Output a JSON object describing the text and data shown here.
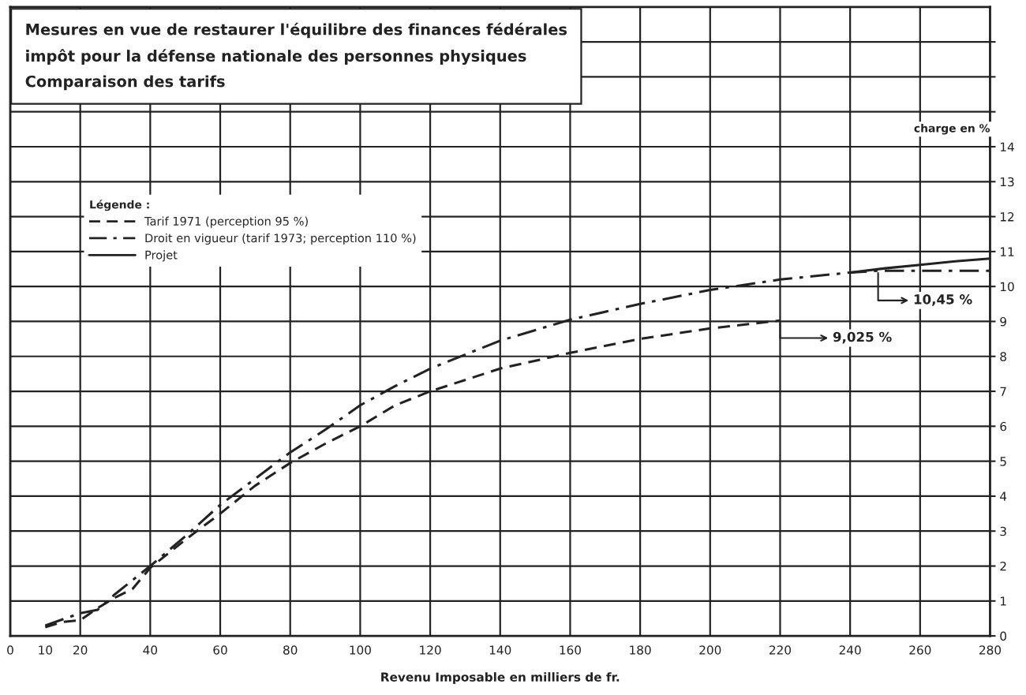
{
  "chart_data": {
    "type": "line",
    "title": "Mesures en vue de restaurer l'équilibre des finances fédérales",
    "subtitle": "impôt pour la défense nationale des personnes physiques\nComparaison des tarifs",
    "xlabel": "Revenu Imposable en milliers de fr.",
    "ylabel": "charge en %",
    "legend_title": "Légende :",
    "series": [
      {
        "name": "Tarif 1971 (perception 95 %)",
        "color": "#222222",
        "line_style": "dashed",
        "x": [
          10,
          15,
          20,
          25,
          30,
          35,
          40,
          50,
          60,
          70,
          80,
          90,
          100,
          110,
          120,
          140,
          160,
          180,
          200,
          220
        ],
        "values": [
          0.25,
          0.4,
          0.45,
          0.8,
          1.1,
          1.35,
          1.95,
          2.75,
          3.5,
          4.3,
          4.95,
          5.5,
          6.0,
          6.6,
          7.0,
          7.65,
          8.1,
          8.5,
          8.8,
          9.025
        ]
      },
      {
        "name": "Droit en vigueur (tarif 1973; perception 110 %)",
        "color": "#222222",
        "line_style": "dashdot",
        "x": [
          10,
          20,
          25,
          30,
          40,
          50,
          60,
          70,
          80,
          90,
          100,
          110,
          120,
          140,
          160,
          180,
          200,
          220,
          240,
          248,
          280
        ],
        "values": [
          0.3,
          0.65,
          0.75,
          1.2,
          2.0,
          2.85,
          3.75,
          4.5,
          5.25,
          5.9,
          6.6,
          7.15,
          7.65,
          8.45,
          9.05,
          9.5,
          9.9,
          10.2,
          10.4,
          10.45,
          10.45
        ]
      },
      {
        "name": "Projet",
        "color": "#222222",
        "line_style": "solid",
        "x": [
          240,
          250,
          260,
          270,
          280
        ],
        "values": [
          10.4,
          10.52,
          10.62,
          10.72,
          10.8
        ]
      }
    ],
    "annotations": [
      {
        "text": "10,45 %",
        "x": 248,
        "y": 10.45
      },
      {
        "text": "9,025 %",
        "x": 220,
        "y": 9.025
      }
    ],
    "xlim": [
      0,
      280
    ],
    "xticks": [
      0,
      10,
      20,
      40,
      60,
      80,
      100,
      120,
      140,
      160,
      180,
      200,
      220,
      240,
      260,
      280
    ],
    "ylim": [
      0,
      18
    ],
    "yticks": [
      0,
      1,
      2,
      3,
      4,
      5,
      6,
      7,
      8,
      9,
      10,
      11,
      12,
      13,
      14,
      {
        "value": 15,
        "label": null
      },
      {
        "value": 16,
        "label": null
      },
      {
        "value": 17,
        "label": null
      }
    ],
    "grid": true,
    "legend": "top left"
  }
}
